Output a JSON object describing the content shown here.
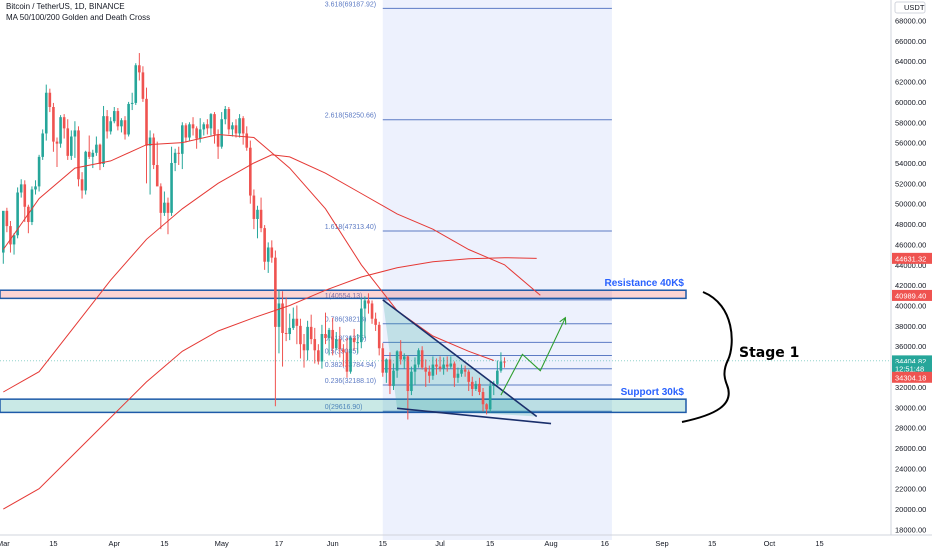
{
  "header": {
    "symbol_line": "Bitcoin / TetherUS, 1D, BINANCE",
    "indicator_line": "MA 50/100/200 Golden and Death Cross",
    "currency": "USDT"
  },
  "colors": {
    "up": "#26a69a",
    "down": "#ef5350",
    "ma": "#e53935",
    "fib": "#5d7bc4",
    "resistance": "#1e5aa8",
    "support": "#1e5aa8",
    "arrow": "#2e9e2e"
  },
  "chart_data": {
    "type": "candlestick",
    "title": "",
    "ylim": [
      16000,
      70000
    ],
    "y_ticks": [
      18000,
      20000,
      22000,
      24000,
      26000,
      28000,
      30000,
      32000,
      34000,
      36000,
      38000,
      40000,
      42000,
      44000,
      46000,
      48000,
      50000,
      52000,
      54000,
      56000,
      58000,
      60000,
      62000,
      64000,
      66000,
      68000
    ],
    "x_ticks": [
      {
        "label": "Mar",
        "day": 0
      },
      {
        "label": "15",
        "day": 14
      },
      {
        "label": "Apr",
        "day": 31
      },
      {
        "label": "15",
        "day": 45
      },
      {
        "label": "May",
        "day": 61
      },
      {
        "label": "17",
        "day": 77
      },
      {
        "label": "Jun",
        "day": 92
      },
      {
        "label": "15",
        "day": 106
      },
      {
        "label": "Jul",
        "day": 122
      },
      {
        "label": "15",
        "day": 136
      },
      {
        "label": "Aug",
        "day": 153
      },
      {
        "label": "16",
        "day": 168
      },
      {
        "label": "Sep",
        "day": 184
      },
      {
        "label": "15",
        "day": 198
      },
      {
        "label": "Oct",
        "day": 214
      },
      {
        "label": "15",
        "day": 228
      }
    ],
    "price_tags": [
      {
        "label": "44631.32",
        "value": 44631,
        "color": "#ef5350"
      },
      {
        "label": "40989.40",
        "value": 40989,
        "color": "#ef5350"
      },
      {
        "label": "34404.82",
        "value": 34560,
        "color": "#26a69a"
      },
      {
        "label": "12:51:48",
        "value": 33800,
        "color": "#26a69a"
      },
      {
        "label": "34304.18",
        "value": 32950,
        "color": "#ef5350"
      }
    ],
    "fib_levels": [
      {
        "label": "3.618(69187.92)",
        "value": 69188
      },
      {
        "label": "2.618(58250.66)",
        "value": 58251
      },
      {
        "label": "1.618(47313.40)",
        "value": 47313
      },
      {
        "label": "1(40554.13)",
        "value": 40554
      },
      {
        "label": "0.786(38213)",
        "value": 38213
      },
      {
        "label": "0.618(36375)",
        "value": 36375
      },
      {
        "label": "0.5(35085)",
        "value": 35085
      },
      {
        "label": "0.382(33784.94)",
        "value": 33785
      },
      {
        "label": "0.236(32188.10)",
        "value": 32188
      },
      {
        "label": "0(29616.90)",
        "value": 29617
      }
    ],
    "zones": [
      {
        "name": "resistance",
        "label": "Resistance 40K$",
        "top": 41500,
        "bottom": 40700
      },
      {
        "name": "support",
        "label": "Support 30k$",
        "top": 30800,
        "bottom": 29500
      }
    ],
    "annotation": "Stage 1",
    "candles_ohlc": [
      [
        45200,
        46700,
        44100,
        49300
      ],
      [
        49300,
        49600,
        47200,
        47800
      ],
      [
        47800,
        48300,
        45200,
        46000
      ],
      [
        46000,
        47100,
        45000,
        46900
      ],
      [
        46900,
        51600,
        46600,
        51100
      ],
      [
        51100,
        52400,
        50600,
        51900
      ],
      [
        51900,
        52300,
        48200,
        49700
      ],
      [
        49700,
        49900,
        47100,
        48200
      ],
      [
        48200,
        51700,
        47900,
        51400
      ],
      [
        51400,
        52300,
        50900,
        51700
      ],
      [
        51700,
        54800,
        51200,
        54600
      ],
      [
        54600,
        57300,
        54300,
        56900
      ],
      [
        56900,
        61700,
        56200,
        60900
      ],
      [
        60900,
        61300,
        59000,
        59500
      ],
      [
        59500,
        59900,
        55100,
        56100
      ],
      [
        56100,
        56500,
        53600,
        55900
      ],
      [
        55900,
        58700,
        55500,
        58500
      ],
      [
        58500,
        58800,
        56400,
        57400
      ],
      [
        57400,
        58300,
        54300,
        54700
      ],
      [
        54700,
        57200,
        54300,
        56600
      ],
      [
        56600,
        58100,
        54500,
        57200
      ],
      [
        57200,
        57600,
        51700,
        52400
      ],
      [
        52400,
        53100,
        50500,
        51300
      ],
      [
        51300,
        55200,
        50900,
        55100
      ],
      [
        55100,
        56700,
        54400,
        54600
      ],
      [
        54600,
        55300,
        53500,
        55000
      ],
      [
        55000,
        56600,
        54700,
        55800
      ],
      [
        55800,
        55900,
        53300,
        53900
      ],
      [
        53900,
        59600,
        53600,
        58600
      ],
      [
        58600,
        59200,
        56400,
        57100
      ],
      [
        57100,
        58500,
        56800,
        58100
      ],
      [
        58100,
        59500,
        57900,
        59100
      ],
      [
        59100,
        59400,
        57200,
        57600
      ],
      [
        57600,
        58400,
        57000,
        58200
      ],
      [
        58200,
        58600,
        56300,
        56800
      ],
      [
        56800,
        60000,
        56600,
        59800
      ],
      [
        59800,
        60900,
        59200,
        59900
      ],
      [
        59900,
        63800,
        59700,
        63600
      ],
      [
        63600,
        64800,
        62100,
        62900
      ],
      [
        62900,
        63500,
        60000,
        60300
      ],
      [
        60300,
        61400,
        52000,
        55700
      ],
      [
        55700,
        57200,
        50900,
        56500
      ],
      [
        56500,
        56900,
        53400,
        53800
      ],
      [
        53800,
        56100,
        53000,
        51700
      ],
      [
        51700,
        52000,
        47500,
        49100
      ],
      [
        49100,
        51200,
        48800,
        50100
      ],
      [
        50100,
        50600,
        47000,
        49100
      ],
      [
        49100,
        55600,
        48800,
        54000
      ],
      [
        54000,
        55400,
        53200,
        55000
      ],
      [
        55000,
        55600,
        53800,
        54900
      ],
      [
        54900,
        58000,
        53400,
        57700
      ],
      [
        57700,
        57900,
        56000,
        56500
      ],
      [
        56500,
        58000,
        56200,
        57800
      ],
      [
        57800,
        58500,
        56700,
        57400
      ],
      [
        57400,
        57600,
        55400,
        56400
      ],
      [
        56400,
        58400,
        56000,
        57300
      ],
      [
        57300,
        58000,
        56700,
        57800
      ],
      [
        57800,
        58300,
        56800,
        57400
      ],
      [
        57400,
        58900,
        56700,
        58800
      ],
      [
        58800,
        59000,
        55900,
        56800
      ],
      [
        56800,
        57300,
        54400,
        55600
      ],
      [
        55600,
        59000,
        55400,
        58300
      ],
      [
        58300,
        59600,
        57800,
        59300
      ],
      [
        59300,
        59500,
        56800,
        57300
      ],
      [
        57300,
        58000,
        56600,
        57700
      ],
      [
        57700,
        58300,
        56500,
        56900
      ],
      [
        56900,
        58800,
        56500,
        58400
      ],
      [
        58400,
        58600,
        55800,
        56900
      ],
      [
        56900,
        57600,
        55200,
        55500
      ],
      [
        55500,
        56200,
        50000,
        50800
      ],
      [
        50800,
        51400,
        47500,
        48500
      ],
      [
        48500,
        49800,
        46600,
        49400
      ],
      [
        49400,
        50600,
        47200,
        47600
      ],
      [
        47600,
        47900,
        43500,
        44300
      ],
      [
        44300,
        46200,
        43200,
        45700
      ],
      [
        45700,
        46400,
        44200,
        44700
      ],
      [
        44700,
        45400,
        30100,
        37900
      ],
      [
        37900,
        41500,
        35300,
        40200
      ],
      [
        40200,
        41400,
        34000,
        37300
      ],
      [
        37300,
        40800,
        36500,
        37200
      ],
      [
        37200,
        39200,
        36600,
        37800
      ],
      [
        37800,
        39800,
        37600,
        38700
      ],
      [
        38700,
        40000,
        36200,
        38000
      ],
      [
        38000,
        38700,
        34800,
        36200
      ],
      [
        36200,
        37200,
        33900,
        35600
      ],
      [
        35600,
        38500,
        34600,
        37900
      ],
      [
        37900,
        39100,
        36200,
        36700
      ],
      [
        36700,
        37800,
        34300,
        35600
      ],
      [
        35600,
        36200,
        34200,
        34500
      ],
      [
        34500,
        38100,
        33800,
        37200
      ],
      [
        37200,
        39300,
        36200,
        36800
      ],
      [
        36800,
        37800,
        35100,
        37600
      ],
      [
        37600,
        38800,
        35100,
        35800
      ],
      [
        35800,
        37400,
        35600,
        36700
      ],
      [
        36700,
        37900,
        34900,
        35700
      ],
      [
        35700,
        36200,
        34000,
        35400
      ],
      [
        35400,
        36800,
        32900,
        33500
      ],
      [
        33500,
        37000,
        33300,
        36800
      ],
      [
        36800,
        37700,
        35600,
        36400
      ],
      [
        36400,
        37200,
        35300,
        36400
      ],
      [
        36400,
        40800,
        35800,
        39700
      ],
      [
        39700,
        40900,
        36800,
        40500
      ],
      [
        40500,
        41200,
        39200,
        40200
      ],
      [
        40200,
        40500,
        38200,
        38700
      ],
      [
        38700,
        39300,
        37500,
        38100
      ],
      [
        38100,
        38400,
        35100,
        35800
      ],
      [
        35800,
        36300,
        33000,
        33400
      ],
      [
        33400,
        34800,
        32400,
        34700
      ],
      [
        34700,
        35400,
        31300,
        32100
      ],
      [
        32100,
        34300,
        31700,
        33600
      ],
      [
        33600,
        35600,
        32900,
        35500
      ],
      [
        35500,
        36600,
        34200,
        34700
      ],
      [
        34700,
        35300,
        33800,
        35000
      ],
      [
        35000,
        35100,
        28800,
        31600
      ],
      [
        31600,
        34000,
        31200,
        33500
      ],
      [
        33500,
        34900,
        32200,
        34200
      ],
      [
        34200,
        35800,
        33900,
        35600
      ],
      [
        35600,
        36000,
        33700,
        33900
      ],
      [
        33900,
        34700,
        32000,
        33500
      ],
      [
        33500,
        34100,
        32400,
        33100
      ],
      [
        33100,
        35000,
        32700,
        34200
      ],
      [
        34200,
        34800,
        33200,
        34000
      ],
      [
        34000,
        35000,
        33500,
        33800
      ],
      [
        33800,
        34900,
        33200,
        34200
      ],
      [
        34200,
        35000,
        33500,
        34000
      ],
      [
        34000,
        35000,
        33800,
        34300
      ],
      [
        34300,
        34500,
        32000,
        32900
      ],
      [
        32900,
        33900,
        32400,
        33300
      ],
      [
        33300,
        34200,
        33000,
        33700
      ],
      [
        33700,
        34100,
        33000,
        33500
      ],
      [
        33500,
        33700,
        31600,
        32500
      ],
      [
        32500,
        33000,
        31100,
        31800
      ],
      [
        31800,
        32600,
        31600,
        32300
      ],
      [
        32300,
        32900,
        31200,
        31500
      ],
      [
        31500,
        31900,
        29600,
        30300
      ],
      [
        30300,
        30400,
        29300,
        29800
      ],
      [
        29800,
        32600,
        29500,
        32100
      ],
      [
        32100,
        32600,
        31200,
        32300
      ],
      [
        32300,
        34600,
        32200,
        33600
      ],
      [
        33600,
        35400,
        33400,
        34500
      ],
      [
        34500,
        34900,
        33900,
        34400
      ]
    ],
    "moving_averages": [
      {
        "period": 50,
        "points": [
          [
            0,
            45500
          ],
          [
            10,
            50500
          ],
          [
            20,
            53500
          ],
          [
            30,
            54200
          ],
          [
            40,
            55800
          ],
          [
            50,
            56000
          ],
          [
            60,
            56800
          ],
          [
            70,
            56500
          ],
          [
            75,
            55000
          ],
          [
            80,
            53500
          ],
          [
            90,
            49500
          ],
          [
            100,
            44000
          ],
          [
            110,
            39500
          ],
          [
            120,
            37000
          ],
          [
            130,
            35500
          ],
          [
            137,
            34600
          ]
        ]
      },
      {
        "period": 100,
        "points": [
          [
            0,
            31500
          ],
          [
            10,
            33500
          ],
          [
            20,
            38000
          ],
          [
            30,
            42500
          ],
          [
            40,
            46500
          ],
          [
            50,
            49500
          ],
          [
            60,
            52000
          ],
          [
            70,
            54000
          ],
          [
            75,
            54800
          ],
          [
            80,
            54600
          ],
          [
            90,
            53000
          ],
          [
            100,
            51000
          ],
          [
            110,
            49000
          ],
          [
            120,
            47500
          ],
          [
            130,
            45500
          ],
          [
            140,
            44000
          ],
          [
            150,
            41000
          ]
        ]
      },
      {
        "period": 200,
        "points": [
          [
            0,
            20000
          ],
          [
            10,
            22000
          ],
          [
            20,
            25500
          ],
          [
            30,
            29000
          ],
          [
            40,
            32500
          ],
          [
            50,
            35500
          ],
          [
            60,
            37500
          ],
          [
            70,
            38800
          ],
          [
            80,
            40000
          ],
          [
            90,
            41500
          ],
          [
            100,
            42800
          ],
          [
            110,
            43700
          ],
          [
            120,
            44300
          ],
          [
            130,
            44600
          ],
          [
            140,
            44700
          ],
          [
            149,
            44631
          ]
        ]
      }
    ],
    "wedge": {
      "upper": [
        [
          106,
          40554
        ],
        [
          149,
          29100
        ]
      ],
      "lower": [
        [
          110,
          29900
        ],
        [
          153,
          28400
        ]
      ]
    },
    "projection_arrow": [
      [
        139,
        31200
      ],
      [
        145,
        35200
      ],
      [
        150,
        33600
      ],
      [
        157,
        38800
      ]
    ],
    "fib_zone_days": [
      106,
      170
    ]
  }
}
